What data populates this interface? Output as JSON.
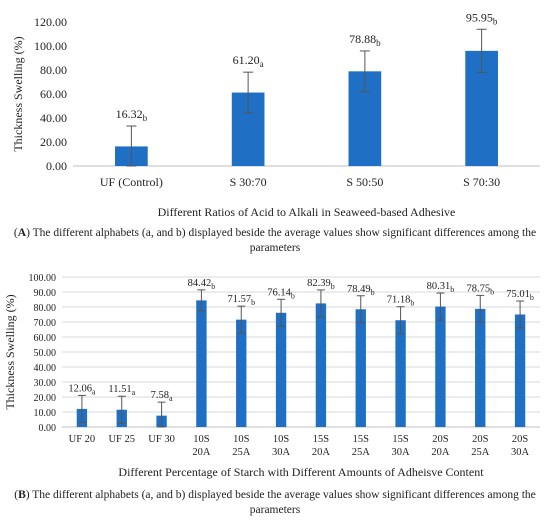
{
  "colors": {
    "bar": "#1f6fc5",
    "axis": "#bfbfbf",
    "grid": "#d9d9d9",
    "error": "#555555"
  },
  "caption_a": {
    "letter": "A",
    "text": "The different alphabets (a, and b) displayed beside the average values show significant differences among the parameters"
  },
  "caption_b": {
    "letter": "B",
    "text": "The different alphabets (a, and b) displayed beside the average values show significant differences among the parameters"
  },
  "chart_data": [
    {
      "type": "bar",
      "title": "",
      "xlabel": "Different Ratios of Acid to Alkali in Seaweed-based Adhesive",
      "ylabel": "Thickness Swelling (%)",
      "ylim": [
        0,
        120
      ],
      "yticks": [
        "0.00",
        "20.00",
        "40.00",
        "60.00",
        "80.00",
        "100.00",
        "120.00"
      ],
      "categories": [
        "UF (Control)",
        "S 30:70",
        "S 50:50",
        "S 70:30"
      ],
      "values": [
        16.32,
        61.2,
        78.88,
        95.95
      ],
      "errors": [
        17,
        17,
        17,
        18
      ],
      "value_labels": [
        "16.32",
        "61.20",
        "78.88",
        "95.95"
      ],
      "letters": [
        "b",
        "a",
        "b",
        "b"
      ],
      "grid": false
    },
    {
      "type": "bar",
      "title": "",
      "xlabel": "Different Percentage of Starch with Different Amounts of Adheisve Content",
      "ylabel": "Thickness Swelling (%)",
      "ylim": [
        0,
        100
      ],
      "yticks": [
        "0.00",
        "10.00",
        "20.00",
        "30.00",
        "40.00",
        "50.00",
        "60.00",
        "70.00",
        "80.00",
        "90.00",
        "100.00"
      ],
      "categories": [
        [
          "UF 20"
        ],
        [
          "UF 25"
        ],
        [
          "UF 30"
        ],
        [
          "10S",
          "20A"
        ],
        [
          "10S",
          "25A"
        ],
        [
          "10S",
          "30A"
        ],
        [
          "15S",
          "20A"
        ],
        [
          "15S",
          "25A"
        ],
        [
          "15S",
          "30A"
        ],
        [
          "20S",
          "20A"
        ],
        [
          "20S",
          "25A"
        ],
        [
          "20S",
          "30A"
        ]
      ],
      "values": [
        12.06,
        11.51,
        7.58,
        84.42,
        71.57,
        76.14,
        82.39,
        78.49,
        71.18,
        80.31,
        78.75,
        75.01
      ],
      "errors": [
        9,
        9,
        9,
        7,
        9,
        9,
        9,
        9,
        9,
        9,
        9,
        9
      ],
      "value_labels": [
        "12.06",
        "11.51",
        "7.58",
        "84.42",
        "71.57",
        "76.14",
        "82.39",
        "78.49",
        "71.18",
        "80.31",
        "78.75",
        "75.01"
      ],
      "letters": [
        "a",
        "a",
        "a",
        "b",
        "b",
        "b",
        "b",
        "b",
        "b",
        "b",
        "b",
        "b"
      ],
      "grid": true
    }
  ]
}
